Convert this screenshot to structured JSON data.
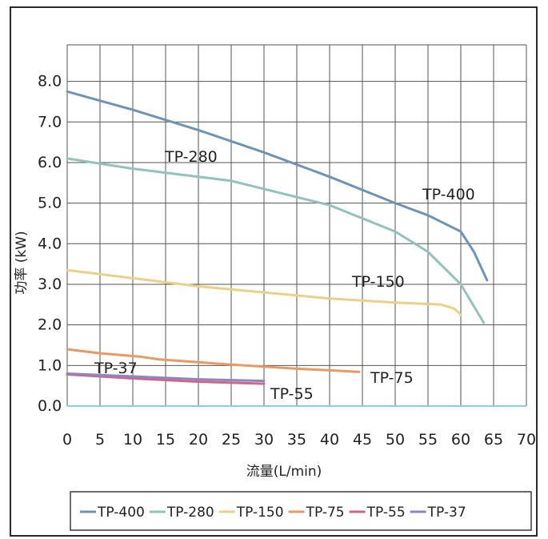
{
  "chart_data": {
    "type": "line",
    "title": "",
    "xlabel": "流量(L/min)",
    "ylabel": "功率 (kW)",
    "xlim": [
      0,
      70
    ],
    "ylim": [
      0,
      8.0
    ],
    "x_ticks": [
      "0",
      "5",
      "10",
      "15",
      "20",
      "25",
      "30",
      "35",
      "40",
      "45",
      "50",
      "55",
      "60",
      "65",
      "70"
    ],
    "y_ticks": [
      "0.0",
      "1.0",
      "2.0",
      "3.0",
      "4.0",
      "5.0",
      "6.0",
      "7.0",
      "8.0"
    ],
    "grid": true,
    "legend_position": "bottom",
    "series": [
      {
        "name": "TP-400",
        "color": "#6f93b7",
        "label": "TP-400",
        "points": [
          [
            0,
            7.75
          ],
          [
            10,
            7.3
          ],
          [
            20,
            6.8
          ],
          [
            30,
            6.25
          ],
          [
            40,
            5.65
          ],
          [
            50,
            5.0
          ],
          [
            55,
            4.7
          ],
          [
            60,
            4.3
          ],
          [
            62,
            3.8
          ],
          [
            64,
            3.1
          ]
        ]
      },
      {
        "name": "TP-280",
        "color": "#93c2bd",
        "label": "TP-280",
        "points": [
          [
            0,
            6.1
          ],
          [
            10,
            5.85
          ],
          [
            20,
            5.65
          ],
          [
            25,
            5.55
          ],
          [
            30,
            5.35
          ],
          [
            40,
            4.95
          ],
          [
            50,
            4.3
          ],
          [
            55,
            3.8
          ],
          [
            60,
            3.0
          ],
          [
            63.5,
            2.05
          ]
        ]
      },
      {
        "name": "TP-150",
        "color": "#ecd08a",
        "label": "TP-150",
        "points": [
          [
            0,
            3.35
          ],
          [
            10,
            3.15
          ],
          [
            20,
            2.95
          ],
          [
            30,
            2.8
          ],
          [
            40,
            2.65
          ],
          [
            50,
            2.55
          ],
          [
            57,
            2.5
          ],
          [
            59,
            2.4
          ],
          [
            60,
            2.25
          ]
        ]
      },
      {
        "name": "TP-75",
        "color": "#e79a63",
        "label": "TP-75",
        "points": [
          [
            0,
            1.4
          ],
          [
            5,
            1.3
          ],
          [
            11,
            1.22
          ],
          [
            14,
            1.15
          ],
          [
            20,
            1.08
          ],
          [
            25,
            1.02
          ],
          [
            30,
            0.97
          ],
          [
            35,
            0.92
          ],
          [
            40,
            0.88
          ],
          [
            44.5,
            0.84
          ]
        ]
      },
      {
        "name": "TP-55",
        "color": "#cf6788",
        "label": "TP-55",
        "points": [
          [
            0,
            0.78
          ],
          [
            10,
            0.68
          ],
          [
            20,
            0.6
          ],
          [
            30,
            0.55
          ]
        ]
      },
      {
        "name": "TP-37",
        "color": "#8d86c2",
        "label": "TP-37",
        "points": [
          [
            0,
            0.8
          ],
          [
            10,
            0.73
          ],
          [
            20,
            0.66
          ],
          [
            30,
            0.62
          ]
        ]
      }
    ]
  }
}
